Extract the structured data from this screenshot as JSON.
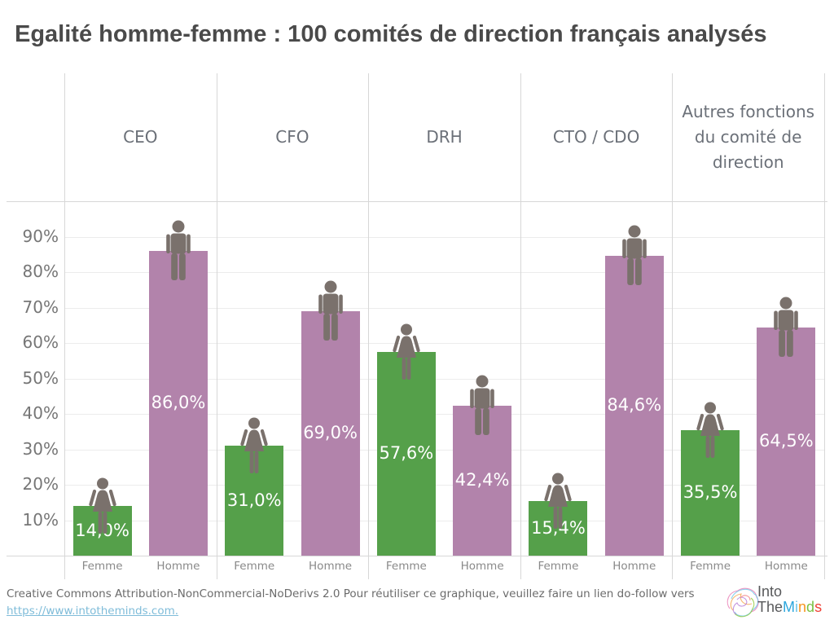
{
  "title": "Egalité homme-femme : 100 comités de direction français analysés",
  "chart_data": {
    "type": "bar",
    "title": "Egalité homme-femme : 100 comités de direction français analysés",
    "categories": [
      "Femme",
      "Homme"
    ],
    "panels": [
      {
        "label": "CEO",
        "values": [
          14.0,
          86.0
        ],
        "value_labels": [
          "14,0%",
          "86,0%"
        ]
      },
      {
        "label": "CFO",
        "values": [
          31.0,
          69.0
        ],
        "value_labels": [
          "31,0%",
          "69,0%"
        ]
      },
      {
        "label": "DRH",
        "values": [
          57.6,
          42.4
        ],
        "value_labels": [
          "57,6%",
          "42,4%"
        ]
      },
      {
        "label": "CTO / CDO",
        "values": [
          15.4,
          84.6
        ],
        "value_labels": [
          "15,4%",
          "84,6%"
        ]
      },
      {
        "label": "Autres fonctions du comité de direction",
        "values": [
          35.5,
          64.5
        ],
        "value_labels": [
          "35,5%",
          "64,5%"
        ]
      }
    ],
    "ylim": [
      0,
      100
    ],
    "yticks": [
      {
        "value": 90,
        "label": "90%"
      },
      {
        "value": 80,
        "label": "80%"
      },
      {
        "value": 70,
        "label": "70%"
      },
      {
        "value": 60,
        "label": "60%"
      },
      {
        "value": 50,
        "label": "50%"
      },
      {
        "value": 40,
        "label": "40%"
      },
      {
        "value": 30,
        "label": "30%"
      },
      {
        "value": 20,
        "label": "20%"
      },
      {
        "value": 10,
        "label": "10%"
      }
    ],
    "grid": true,
    "legend": "none",
    "colors": {
      "Femme": "#55a04a",
      "Homme": "#b283ab"
    },
    "icon_color": "#7a716c",
    "icons": [
      "woman-icon",
      "man-icon"
    ]
  },
  "footer": {
    "line1": "Creative Commons Attribution-NonCommercial-NoDerivs 2.0 Pour réutiliser ce graphique, veuillez faire un lien do-follow vers",
    "link_text": "https://www.intotheminds.com."
  },
  "logo": {
    "line1": "Into",
    "line2_prefix": "The",
    "line2_letters": [
      {
        "char": "M",
        "color": "#2da7dd"
      },
      {
        "char": "i",
        "color": "#6fc7e7"
      },
      {
        "char": "n",
        "color": "#f7941e"
      },
      {
        "char": "d",
        "color": "#7ac143"
      },
      {
        "char": "s",
        "color": "#ef4136"
      }
    ]
  }
}
